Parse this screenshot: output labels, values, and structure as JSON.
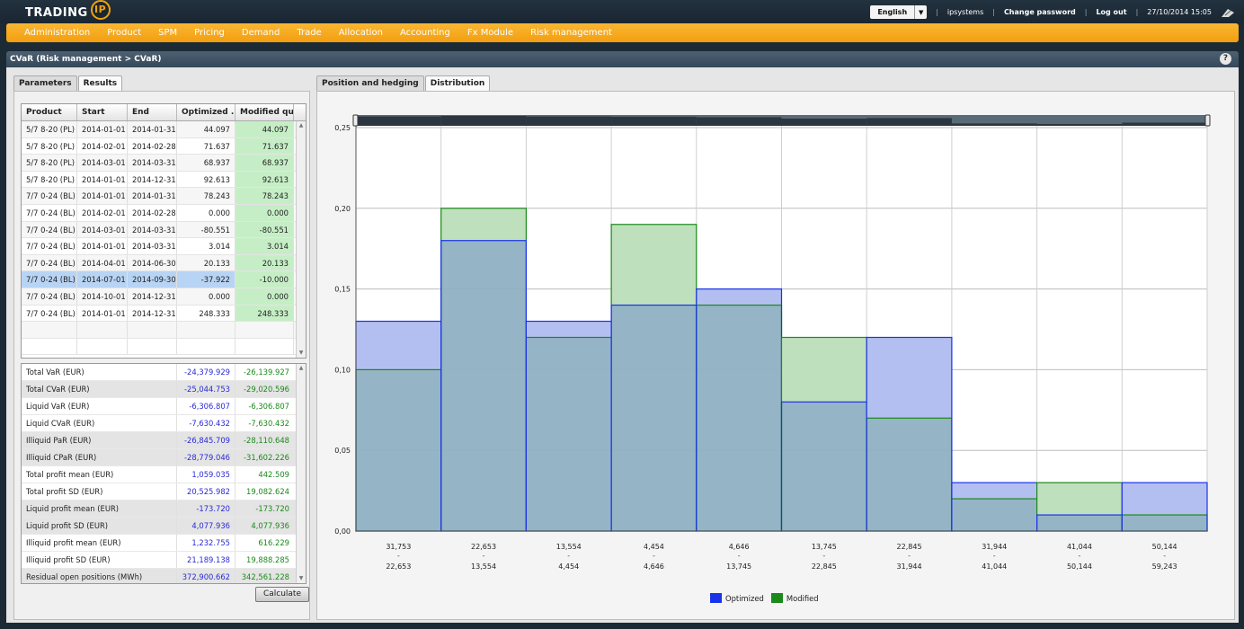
{
  "app": {
    "logo_text": "TRADING",
    "logo_badge": "IP",
    "language": "English",
    "user": "ipsystems",
    "change_password": "Change password",
    "logout": "Log out",
    "datetime": "27/10/2014 15:05"
  },
  "menu": [
    "Administration",
    "Product",
    "SPM",
    "Pricing",
    "Demand",
    "Trade",
    "Allocation",
    "Accounting",
    "Fx Module",
    "Risk management"
  ],
  "page": {
    "title": "CVaR (Risk management > CVaR)",
    "help": "?"
  },
  "left_tabs": [
    {
      "label": "Parameters",
      "active": false
    },
    {
      "label": "Results",
      "active": true
    }
  ],
  "right_tabs": [
    {
      "label": "Position and hedging",
      "active": false
    },
    {
      "label": "Distribution",
      "active": true
    }
  ],
  "results": {
    "columns": [
      "Product",
      "Start",
      "End",
      "Optimized ...",
      "Modified qua..."
    ],
    "rows": [
      [
        "5/7 8-20 (PL)",
        "2014-01-01",
        "2014-01-31",
        "44.097",
        "44.097"
      ],
      [
        "5/7 8-20 (PL)",
        "2014-02-01",
        "2014-02-28",
        "71.637",
        "71.637"
      ],
      [
        "5/7 8-20 (PL)",
        "2014-03-01",
        "2014-03-31",
        "68.937",
        "68.937"
      ],
      [
        "5/7 8-20 (PL)",
        "2014-01-01",
        "2014-12-31",
        "92.613",
        "92.613"
      ],
      [
        "7/7 0-24 (BL)",
        "2014-01-01",
        "2014-01-31",
        "78.243",
        "78.243"
      ],
      [
        "7/7 0-24 (BL)",
        "2014-02-01",
        "2014-02-28",
        "0.000",
        "0.000"
      ],
      [
        "7/7 0-24 (BL)",
        "2014-03-01",
        "2014-03-31",
        "-80.551",
        "-80.551"
      ],
      [
        "7/7 0-24 (BL)",
        "2014-01-01",
        "2014-03-31",
        "3.014",
        "3.014"
      ],
      [
        "7/7 0-24 (BL)",
        "2014-04-01",
        "2014-06-30",
        "20.133",
        "20.133"
      ],
      [
        "7/7 0-24 (BL)",
        "2014-07-01",
        "2014-09-30",
        "-37.922",
        "-10.000"
      ],
      [
        "7/7 0-24 (BL)",
        "2014-10-01",
        "2014-12-31",
        "0.000",
        "0.000"
      ],
      [
        "7/7 0-24 (BL)",
        "2014-01-01",
        "2014-12-31",
        "248.333",
        "248.333"
      ]
    ],
    "selected_row": 9
  },
  "risk_summary": [
    [
      "Total VaR (EUR)",
      "-24,379.929",
      "-26,139.927"
    ],
    [
      "Total CVaR (EUR)",
      "-25,044.753",
      "-29,020.596"
    ],
    [
      "Liquid VaR (EUR)",
      "-6,306.807",
      "-6,306.807"
    ],
    [
      "Liquid CVaR (EUR)",
      "-7,630.432",
      "-7,630.432"
    ],
    [
      "Illiquid PaR (EUR)",
      "-26,845.709",
      "-28,110.648"
    ],
    [
      "Illiquid CPaR (EUR)",
      "-28,779.046",
      "-31,602.226"
    ],
    [
      "Total profit mean (EUR)",
      "1,059.035",
      "442.509"
    ],
    [
      "Total profit SD (EUR)",
      "20,525.982",
      "19,082.624"
    ],
    [
      "Liquid profit mean (EUR)",
      "-173.720",
      "-173.720"
    ],
    [
      "Liquid profit SD (EUR)",
      "4,077.936",
      "4,077.936"
    ],
    [
      "Illiquid profit mean (EUR)",
      "1,232.755",
      "616.229"
    ],
    [
      "Illiquid profit SD (EUR)",
      "21,189.138",
      "19,888.285"
    ],
    [
      "Residual open positions (MWh)",
      "372,900.662",
      "342,561.228"
    ]
  ],
  "calculate_label": "Calculate",
  "chart_data": {
    "type": "bar",
    "categories": [
      "31,753 - 22,653",
      "22,653 - 13,554",
      "13,554 - 4,454",
      "4,454 - 4,646",
      "4,646 - 13,745",
      "13,745 - 22,845",
      "22,845 - 31,944",
      "31,944 - 41,044",
      "41,044 - 50,144",
      "50,144 - 59,243"
    ],
    "bin_edges_top": [
      "31,753",
      "22,653",
      "13,554",
      "4,454",
      "4,646",
      "13,745",
      "22,845",
      "31,944",
      "41,044",
      "50,144"
    ],
    "bin_edges_bottom": [
      "22,653",
      "13,554",
      "4,454",
      "4,646",
      "13,745",
      "22,845",
      "31,944",
      "41,044",
      "50,144",
      "59,243"
    ],
    "series": [
      {
        "name": "Optimized",
        "color": "#1a33e8",
        "values": [
          0.13,
          0.18,
          0.13,
          0.14,
          0.15,
          0.08,
          0.12,
          0.03,
          0.01,
          0.03
        ]
      },
      {
        "name": "Modified",
        "color": "#1a8a1a",
        "values": [
          0.1,
          0.2,
          0.12,
          0.19,
          0.14,
          0.12,
          0.07,
          0.02,
          0.03,
          0.01
        ]
      }
    ],
    "ylim": [
      0,
      0.25
    ],
    "yticks": [
      "0,00",
      "0,05",
      "0,10",
      "0,15",
      "0,20",
      "0,25"
    ],
    "grid": true,
    "legend_position": "bottom"
  }
}
